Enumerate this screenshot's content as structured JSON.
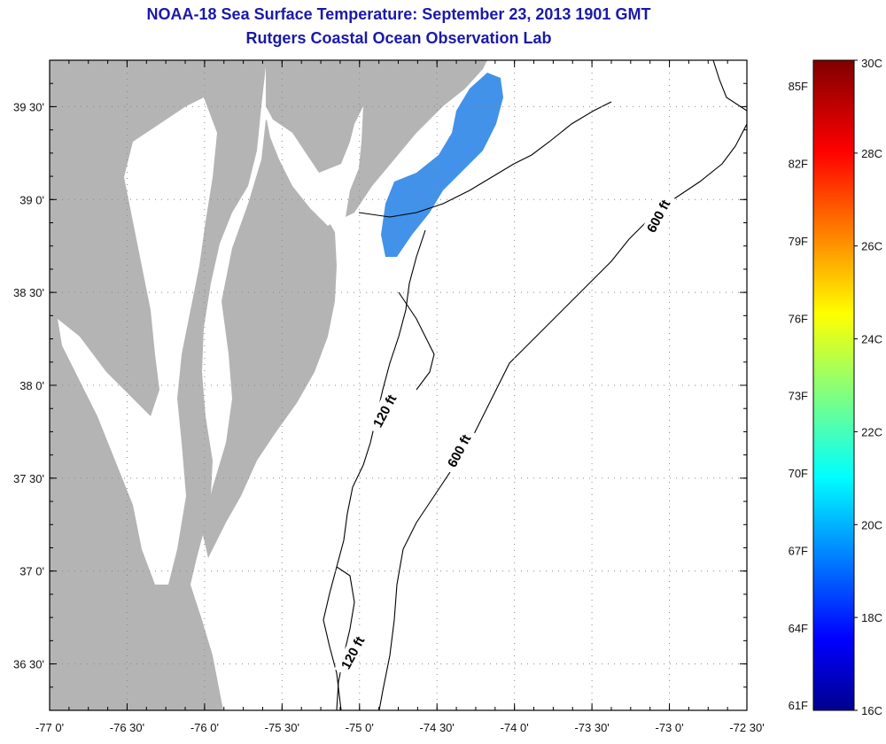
{
  "title_line1": "NOAA-18 Sea Surface Temperature:  September 23, 2013 1901 GMT",
  "title_line2": "Rutgers Coastal Ocean Observation Lab",
  "map": {
    "lon_range": [
      -77.0,
      -72.5
    ],
    "lat_range": [
      36.25,
      39.75
    ],
    "lon_ticks": [
      {
        "value": -77.0,
        "label": "-77 0'"
      },
      {
        "value": -76.5,
        "label": "-76 30'"
      },
      {
        "value": -76.0,
        "label": "-76 0'"
      },
      {
        "value": -75.5,
        "label": "-75 30'"
      },
      {
        "value": -75.0,
        "label": "-75 0'"
      },
      {
        "value": -74.5,
        "label": "-74 30'"
      },
      {
        "value": -74.0,
        "label": "-74 0'"
      },
      {
        "value": -73.5,
        "label": "-73 30'"
      },
      {
        "value": -73.0,
        "label": "-73 0'"
      },
      {
        "value": -72.5,
        "label": "-72 30'"
      }
    ],
    "lat_ticks": [
      {
        "value": 39.5,
        "label": "39 30'"
      },
      {
        "value": 39.0,
        "label": "39 0'"
      },
      {
        "value": 38.5,
        "label": "38 30'"
      },
      {
        "value": 38.0,
        "label": "38 0'"
      },
      {
        "value": 37.5,
        "label": "37 30'"
      },
      {
        "value": 37.0,
        "label": "37 0'"
      },
      {
        "value": 36.5,
        "label": "36 30'"
      }
    ],
    "land_color": "#b4b4b4",
    "water_color": "#ffffff",
    "sst_color": "#2e86e8",
    "contour_labels": [
      "120 ft",
      "600 ft",
      "600 ft",
      "120 ft"
    ]
  },
  "colorbar": {
    "min_c": 16,
    "max_c": 30,
    "celsius_labels": [
      "30C",
      "28C",
      "26C",
      "24C",
      "22C",
      "20C",
      "18C",
      "16C"
    ],
    "fahrenheit_labels": [
      "85F",
      "82F",
      "79F",
      "76F",
      "73F",
      "70F",
      "67F",
      "64F",
      "61F"
    ]
  }
}
